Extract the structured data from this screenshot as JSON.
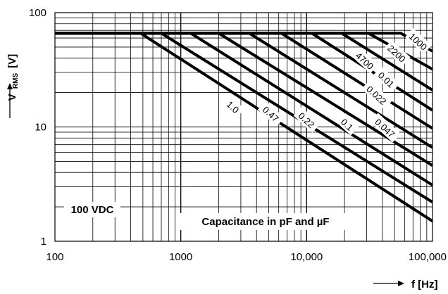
{
  "chart_data": {
    "type": "line",
    "title": "",
    "xlabel": "f [Hz]",
    "ylabel_main": "V",
    "ylabel_sub": "RMS",
    "ylabel_unit": "[V]",
    "xscale": "log",
    "yscale": "log",
    "xlim": [
      100,
      100000
    ],
    "ylim": [
      1,
      100
    ],
    "grid": true,
    "x_tick_labels": [
      "100",
      "1000",
      "10,000",
      "100,000"
    ],
    "y_tick_labels": [
      "1",
      "10",
      "100"
    ],
    "x_tick_values": [
      100,
      1000,
      10000,
      100000
    ],
    "y_tick_values": [
      1,
      10,
      100
    ],
    "voltage_limit_label": "100 VDC",
    "note": "Capacitance in pF and µF",
    "plateau_voltage": 66,
    "series": [
      {
        "name": "1.0",
        "x": [
          100,
          480,
          100000
        ],
        "y": [
          66,
          66,
          1.5
        ]
      },
      {
        "name": "0.47",
        "x": [
          100,
          700,
          100000
        ],
        "y": [
          66,
          66,
          2.2
        ]
      },
      {
        "name": "0.22",
        "x": [
          100,
          1200,
          100000
        ],
        "y": [
          66,
          66,
          3.1
        ]
      },
      {
        "name": "0.1",
        "x": [
          100,
          2000,
          100000
        ],
        "y": [
          66,
          66,
          4.6
        ]
      },
      {
        "name": "0.047",
        "x": [
          100,
          3500,
          100000
        ],
        "y": [
          66,
          66,
          6.6
        ]
      },
      {
        "name": "0.022",
        "x": [
          100,
          6300,
          100000
        ],
        "y": [
          66,
          66,
          9.7
        ]
      },
      {
        "name": "0.01",
        "x": [
          100,
          11000,
          100000
        ],
        "y": [
          66,
          66,
          14
        ]
      },
      {
        "name": "4700",
        "x": [
          100,
          19000,
          100000
        ],
        "y": [
          66,
          66,
          21
        ]
      },
      {
        "name": "2200",
        "x": [
          100,
          31000,
          100000
        ],
        "y": [
          66,
          66,
          32
        ]
      },
      {
        "name": "1000",
        "x": [
          100,
          56000,
          100000
        ],
        "y": [
          66,
          66,
          46
        ]
      }
    ],
    "label_anchors": [
      {
        "name": "1.0",
        "x": 2600,
        "y": 15
      },
      {
        "name": "0.47",
        "x": 5200,
        "y": 13
      },
      {
        "name": "0.22",
        "x": 10000,
        "y": 11.5
      },
      {
        "name": "0.1",
        "x": 21000,
        "y": 10.5
      },
      {
        "name": "0.047",
        "x": 42000,
        "y": 9.8
      },
      {
        "name": "0.022",
        "x": 36000,
        "y": 19
      },
      {
        "name": "0.01",
        "x": 43000,
        "y": 26
      },
      {
        "name": "4700",
        "x": 29000,
        "y": 38
      },
      {
        "name": "2200",
        "x": 52000,
        "y": 44
      },
      {
        "name": "1000",
        "x": 77000,
        "y": 56
      }
    ]
  }
}
